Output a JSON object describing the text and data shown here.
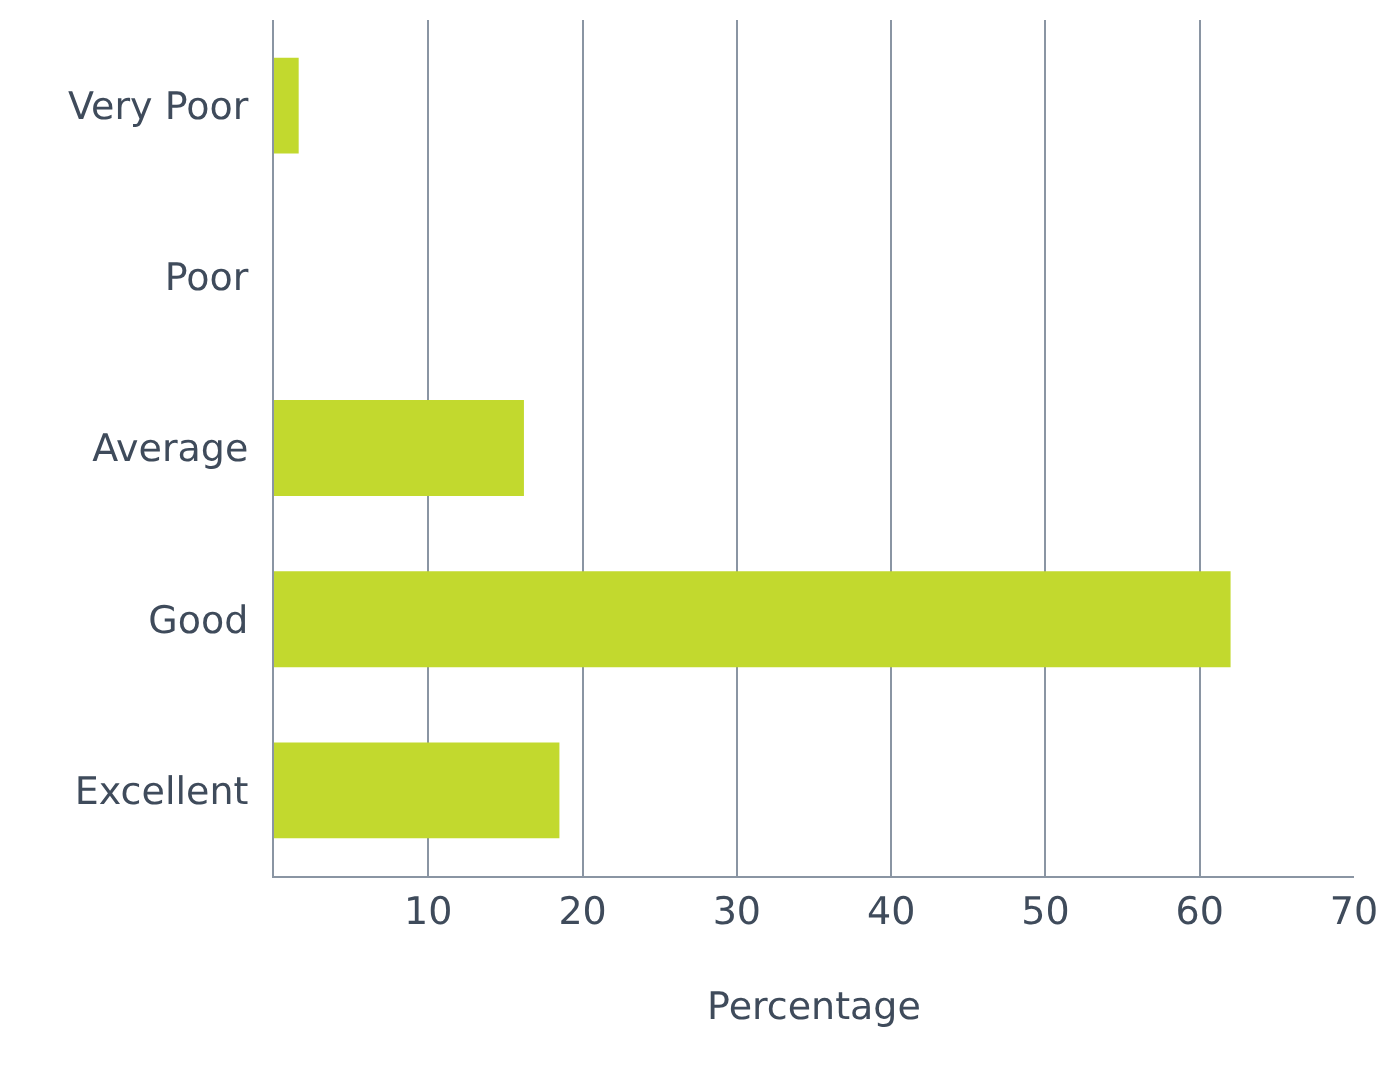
{
  "chart_data": {
    "type": "bar",
    "orientation": "horizontal",
    "xlabel": "Percentage",
    "categories": [
      "Very Poor",
      "Poor",
      "Average",
      "Good",
      "Excellent"
    ],
    "values": [
      1.6,
      0,
      16.2,
      62,
      18.5
    ],
    "color": "#c2d92e",
    "xlim": [
      0,
      70
    ],
    "xticks": [
      10,
      20,
      30,
      40,
      50,
      60,
      70
    ],
    "grid": "x"
  }
}
